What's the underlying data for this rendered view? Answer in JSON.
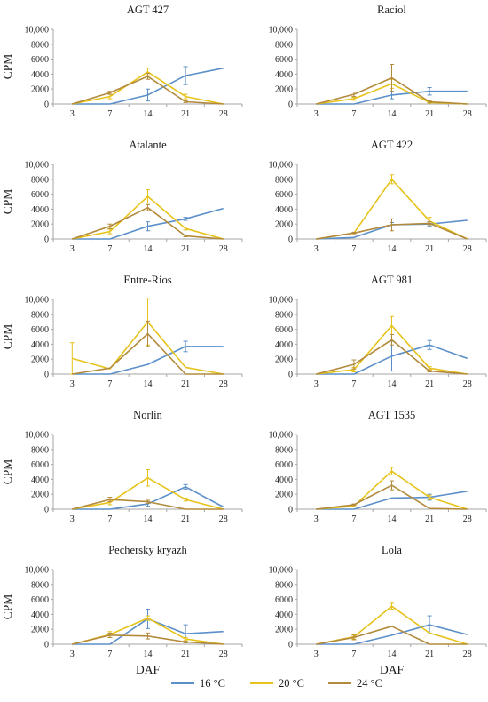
{
  "chart_data": [
    {
      "type": "line",
      "title": "AGT 427",
      "ylabel": "CPM",
      "xlabel": "",
      "categories": [
        "3",
        "7",
        "14",
        "21",
        "28"
      ],
      "ylim": [
        0,
        10000
      ],
      "yticks": [
        "0",
        "2000",
        "4000",
        "6000",
        "8000",
        "10,000"
      ],
      "series": [
        {
          "name": "16 °C",
          "values": [
            0,
            0,
            1200,
            3800,
            4800
          ],
          "errors": [
            0,
            0,
            800,
            1200,
            0
          ]
        },
        {
          "name": "20 °C",
          "values": [
            0,
            1000,
            4300,
            1000,
            0
          ],
          "errors": [
            0,
            300,
            500,
            300,
            0
          ]
        },
        {
          "name": "24 °C",
          "values": [
            0,
            1500,
            3700,
            300,
            0
          ],
          "errors": [
            0,
            200,
            400,
            100,
            0
          ]
        }
      ]
    },
    {
      "type": "line",
      "title": "Raciol",
      "ylabel": "",
      "xlabel": "",
      "categories": [
        "3",
        "7",
        "14",
        "21",
        "28"
      ],
      "ylim": [
        0,
        10000
      ],
      "yticks": [
        "0",
        "2000",
        "4000",
        "6000",
        "8000",
        "10,000"
      ],
      "series": [
        {
          "name": "16 °C",
          "values": [
            0,
            0,
            1200,
            1700,
            1700
          ],
          "errors": [
            0,
            0,
            500,
            500,
            0
          ]
        },
        {
          "name": "20 °C",
          "values": [
            0,
            700,
            2700,
            200,
            0
          ],
          "errors": [
            0,
            200,
            600,
            100,
            0
          ]
        },
        {
          "name": "24 °C",
          "values": [
            0,
            1300,
            3500,
            300,
            0
          ],
          "errors": [
            0,
            300,
            1800,
            100,
            0
          ]
        }
      ]
    },
    {
      "type": "line",
      "title": "Atalante",
      "ylabel": "CPM",
      "xlabel": "",
      "categories": [
        "3",
        "7",
        "14",
        "21",
        "28"
      ],
      "ylim": [
        0,
        10000
      ],
      "yticks": [
        "0",
        "2000",
        "4000",
        "6000",
        "8000",
        "10,000"
      ],
      "series": [
        {
          "name": "16 °C",
          "values": [
            0,
            0,
            1700,
            2700,
            4100
          ],
          "errors": [
            0,
            0,
            600,
            200,
            0
          ]
        },
        {
          "name": "20 °C",
          "values": [
            0,
            1000,
            5700,
            1400,
            0
          ],
          "errors": [
            0,
            300,
            900,
            200,
            0
          ]
        },
        {
          "name": "24 °C",
          "values": [
            0,
            1700,
            4200,
            400,
            0
          ],
          "errors": [
            0,
            300,
            400,
            100,
            0
          ]
        }
      ]
    },
    {
      "type": "line",
      "title": "AGT 422",
      "ylabel": "",
      "xlabel": "",
      "categories": [
        "3",
        "7",
        "14",
        "21",
        "28"
      ],
      "ylim": [
        0,
        10000
      ],
      "yticks": [
        "0",
        "2000",
        "4000",
        "6000",
        "8000",
        "10,000"
      ],
      "series": [
        {
          "name": "16 °C",
          "values": [
            0,
            200,
            1900,
            2000,
            2500
          ],
          "errors": [
            0,
            0,
            300,
            300,
            0
          ]
        },
        {
          "name": "20 °C",
          "values": [
            0,
            800,
            8000,
            2400,
            0
          ],
          "errors": [
            0,
            100,
            600,
            500,
            0
          ]
        },
        {
          "name": "24 °C",
          "values": [
            0,
            800,
            1900,
            2100,
            0
          ],
          "errors": [
            0,
            100,
            800,
            200,
            0
          ]
        }
      ]
    },
    {
      "type": "line",
      "title": "Entre-Rios",
      "ylabel": "CPM",
      "xlabel": "",
      "categories": [
        "3",
        "7",
        "14",
        "21",
        "28"
      ],
      "ylim": [
        0,
        10000
      ],
      "yticks": [
        "0",
        "2000",
        "4000",
        "6000",
        "8000",
        "10,000"
      ],
      "series": [
        {
          "name": "16 °C",
          "values": [
            0,
            0,
            1300,
            3700,
            3700
          ],
          "errors": [
            0,
            0,
            0,
            700,
            0
          ]
        },
        {
          "name": "20 °C",
          "values": [
            2100,
            700,
            7000,
            900,
            0
          ],
          "errors": [
            2100,
            0,
            3100,
            0,
            0
          ]
        },
        {
          "name": "24 °C",
          "values": [
            0,
            800,
            5400,
            0,
            0
          ],
          "errors": [
            0,
            0,
            1700,
            0,
            0
          ]
        }
      ]
    },
    {
      "type": "line",
      "title": "AGT 981",
      "ylabel": "",
      "xlabel": "",
      "categories": [
        "3",
        "7",
        "14",
        "21",
        "28"
      ],
      "ylim": [
        0,
        10000
      ],
      "yticks": [
        "0",
        "2000",
        "4000",
        "6000",
        "8000",
        "10,000"
      ],
      "series": [
        {
          "name": "16 °C",
          "values": [
            0,
            0,
            2400,
            3900,
            2100
          ],
          "errors": [
            0,
            0,
            2000,
            600,
            0
          ]
        },
        {
          "name": "20 °C",
          "values": [
            0,
            600,
            6500,
            800,
            0
          ],
          "errors": [
            0,
            300,
            1200,
            200,
            0
          ]
        },
        {
          "name": "24 °C",
          "values": [
            0,
            1300,
            4600,
            400,
            0
          ],
          "errors": [
            0,
            600,
            700,
            100,
            0
          ]
        }
      ]
    },
    {
      "type": "line",
      "title": "Norlin",
      "ylabel": "CPM",
      "xlabel": "",
      "categories": [
        "3",
        "7",
        "14",
        "21",
        "28"
      ],
      "ylim": [
        0,
        10000
      ],
      "yticks": [
        "0",
        "2000",
        "4000",
        "6000",
        "8000",
        "10,000"
      ],
      "series": [
        {
          "name": "16 °C",
          "values": [
            0,
            0,
            700,
            3000,
            300
          ],
          "errors": [
            0,
            0,
            300,
            300,
            0
          ]
        },
        {
          "name": "20 °C",
          "values": [
            0,
            900,
            4200,
            1300,
            0
          ],
          "errors": [
            0,
            300,
            1100,
            200,
            0
          ]
        },
        {
          "name": "24 °C",
          "values": [
            0,
            1300,
            1000,
            0,
            0
          ],
          "errors": [
            0,
            300,
            200,
            0,
            0
          ]
        }
      ]
    },
    {
      "type": "line",
      "title": "AGT 1535",
      "ylabel": "",
      "xlabel": "",
      "categories": [
        "3",
        "7",
        "14",
        "21",
        "28"
      ],
      "ylim": [
        0,
        10000
      ],
      "yticks": [
        "0",
        "2000",
        "4000",
        "6000",
        "8000",
        "10,000"
      ],
      "series": [
        {
          "name": "16 °C",
          "values": [
            0,
            0,
            1500,
            1600,
            2400
          ],
          "errors": [
            0,
            0,
            0,
            400,
            0
          ]
        },
        {
          "name": "20 °C",
          "values": [
            0,
            400,
            5100,
            1600,
            0
          ],
          "errors": [
            0,
            100,
            500,
            300,
            0
          ]
        },
        {
          "name": "24 °C",
          "values": [
            0,
            600,
            3200,
            100,
            0
          ],
          "errors": [
            0,
            100,
            600,
            0,
            0
          ]
        }
      ]
    },
    {
      "type": "line",
      "title": "Pechersky kryazh",
      "ylabel": "CPM",
      "xlabel": "DAF",
      "categories": [
        "3",
        "7",
        "14",
        "21",
        "28"
      ],
      "ylim": [
        0,
        10000
      ],
      "yticks": [
        "0",
        "2000",
        "4000",
        "6000",
        "8000",
        "10,000"
      ],
      "series": [
        {
          "name": "16 °C",
          "values": [
            0,
            0,
            3400,
            1400,
            1700
          ],
          "errors": [
            0,
            0,
            1300,
            1200,
            0
          ]
        },
        {
          "name": "20 °C",
          "values": [
            0,
            1300,
            3500,
            700,
            0
          ],
          "errors": [
            0,
            400,
            300,
            200,
            0
          ]
        },
        {
          "name": "24 °C",
          "values": [
            0,
            1200,
            1100,
            300,
            0
          ],
          "errors": [
            0,
            300,
            400,
            100,
            0
          ]
        }
      ]
    },
    {
      "type": "line",
      "title": "Lola",
      "ylabel": "",
      "xlabel": "DAF",
      "categories": [
        "3",
        "7",
        "14",
        "21",
        "28"
      ],
      "ylim": [
        0,
        10000
      ],
      "yticks": [
        "0",
        "2000",
        "4000",
        "6000",
        "8000",
        "10,000"
      ],
      "series": [
        {
          "name": "16 °C",
          "values": [
            0,
            0,
            1200,
            2600,
            1300
          ],
          "errors": [
            0,
            0,
            0,
            1200,
            0
          ]
        },
        {
          "name": "20 °C",
          "values": [
            0,
            1000,
            5100,
            1500,
            0
          ],
          "errors": [
            0,
            300,
            400,
            0,
            0
          ]
        },
        {
          "name": "24 °C",
          "values": [
            0,
            900,
            2400,
            0,
            0
          ],
          "errors": [
            0,
            300,
            0,
            0,
            0
          ]
        }
      ]
    }
  ],
  "legend": {
    "placement": "bottom",
    "items": [
      {
        "label": "16 °C",
        "color": "#5b8fc9"
      },
      {
        "label": "20 °C",
        "color": "#e6c21a"
      },
      {
        "label": "24 °C",
        "color": "#b38a3c"
      }
    ]
  },
  "colors": {
    "series": [
      "#5b8fc9",
      "#e6c21a",
      "#b38a3c"
    ],
    "highlight": "#ef7b3b",
    "axis": "#a6a6a6"
  }
}
